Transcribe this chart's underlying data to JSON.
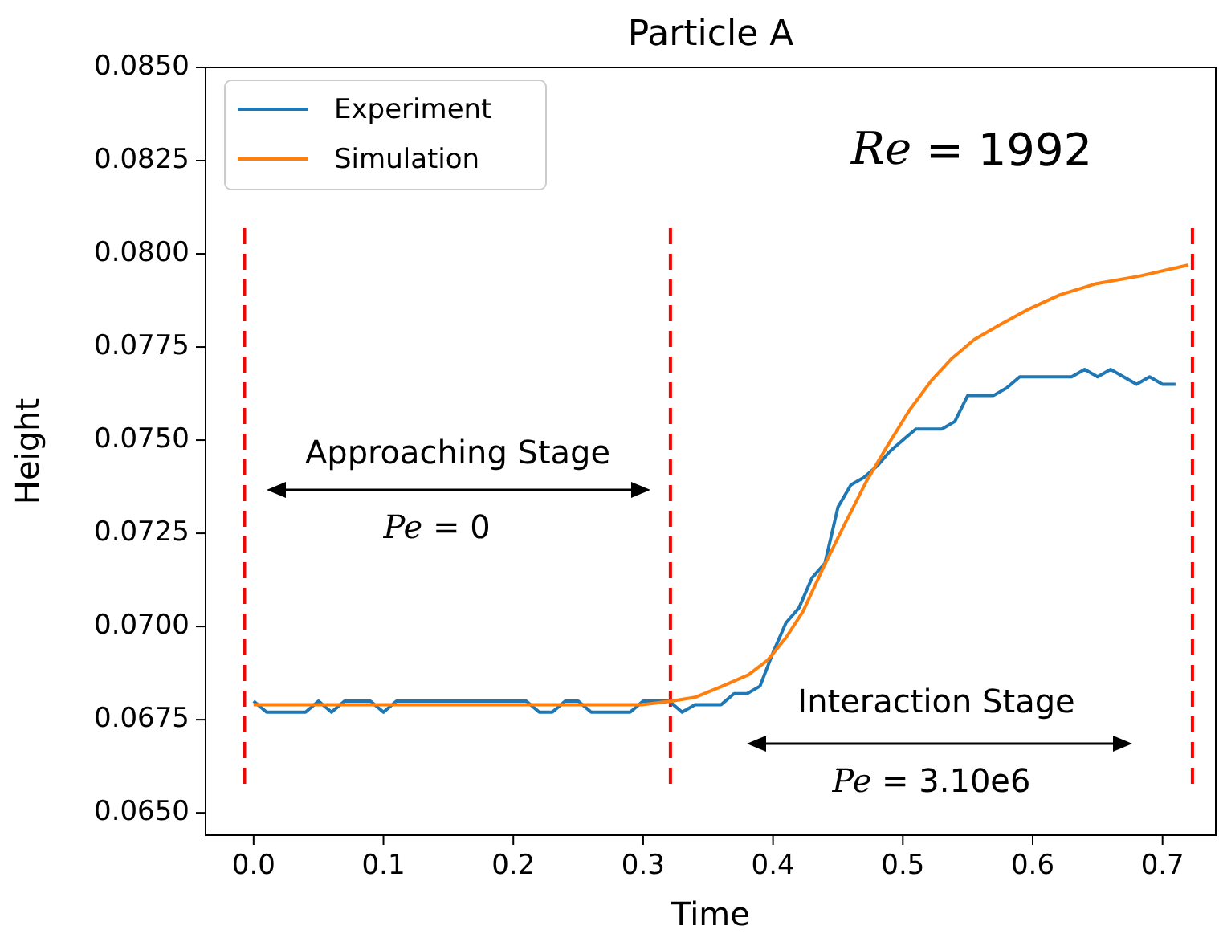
{
  "chart_data": {
    "type": "line",
    "title": "Particle A",
    "xlabel": "Time",
    "ylabel": "Height",
    "xlim": [
      -0.037,
      0.741
    ],
    "ylim": [
      0.0644,
      0.085
    ],
    "xticks": [
      {
        "value": 0,
        "label": "0.0"
      },
      {
        "value": 0.1,
        "label": "0.1"
      },
      {
        "value": 0.2,
        "label": "0.2"
      },
      {
        "value": 0.3,
        "label": "0.3"
      },
      {
        "value": 0.4,
        "label": "0.4"
      },
      {
        "value": 0.5,
        "label": "0.5"
      },
      {
        "value": 0.6,
        "label": "0.6"
      },
      {
        "value": 0.7,
        "label": "0.7"
      }
    ],
    "yticks": [
      {
        "value": 0.065,
        "label": "0.0650"
      },
      {
        "value": 0.0675,
        "label": "0.0675"
      },
      {
        "value": 0.07,
        "label": "0.0700"
      },
      {
        "value": 0.0725,
        "label": "0.0725"
      },
      {
        "value": 0.075,
        "label": "0.0750"
      },
      {
        "value": 0.0775,
        "label": "0.0775"
      },
      {
        "value": 0.08,
        "label": "0.0800"
      },
      {
        "value": 0.0825,
        "label": "0.0825"
      },
      {
        "value": 0.085,
        "label": "0.0850"
      }
    ],
    "grid": false,
    "legend": "top left",
    "marker": "none",
    "line_style": "solid",
    "series": [
      {
        "name": "Experiment",
        "color": "#1f77b4",
        "x": [
          0,
          0.01,
          0.02,
          0.03,
          0.04,
          0.05,
          0.06,
          0.07,
          0.08,
          0.09,
          0.1,
          0.11,
          0.12,
          0.13,
          0.14,
          0.15,
          0.16,
          0.17,
          0.18,
          0.19,
          0.2,
          0.21,
          0.22,
          0.23,
          0.24,
          0.25,
          0.26,
          0.27,
          0.28,
          0.29,
          0.3,
          0.31,
          0.32,
          0.33,
          0.34,
          0.35,
          0.36,
          0.37,
          0.38,
          0.39,
          0.4,
          0.41,
          0.42,
          0.43,
          0.44,
          0.45,
          0.46,
          0.47,
          0.48,
          0.49,
          0.5,
          0.51,
          0.52,
          0.53,
          0.54,
          0.55,
          0.56,
          0.57,
          0.58,
          0.59,
          0.6,
          0.61,
          0.62,
          0.63,
          0.64,
          0.65,
          0.66,
          0.67,
          0.68,
          0.69,
          0.7,
          0.71
        ],
        "values": [
          0.068,
          0.0677,
          0.0677,
          0.0677,
          0.0677,
          0.068,
          0.0677,
          0.068,
          0.068,
          0.068,
          0.0677,
          0.068,
          0.068,
          0.068,
          0.068,
          0.068,
          0.068,
          0.068,
          0.068,
          0.068,
          0.068,
          0.068,
          0.0677,
          0.0677,
          0.068,
          0.068,
          0.0677,
          0.0677,
          0.0677,
          0.0677,
          0.068,
          0.068,
          0.068,
          0.0677,
          0.0679,
          0.0679,
          0.0679,
          0.0682,
          0.0682,
          0.0684,
          0.0693,
          0.0701,
          0.0705,
          0.0713,
          0.0717,
          0.0732,
          0.0738,
          0.074,
          0.0743,
          0.0747,
          0.075,
          0.0753,
          0.0753,
          0.0753,
          0.0755,
          0.0762,
          0.0762,
          0.0762,
          0.0764,
          0.0767,
          0.0767,
          0.0767,
          0.0767,
          0.0767,
          0.0769,
          0.0767,
          0.0769,
          0.0767,
          0.0765,
          0.0767,
          0.0765,
          0.0765
        ]
      },
      {
        "name": "Simulation",
        "color": "#ff7f0e",
        "x": [
          0,
          0.1,
          0.2,
          0.299,
          0.322,
          0.34,
          0.361,
          0.381,
          0.396,
          0.41,
          0.423,
          0.439,
          0.456,
          0.472,
          0.489,
          0.505,
          0.522,
          0.538,
          0.555,
          0.575,
          0.596,
          0.621,
          0.649,
          0.682,
          0.72
        ],
        "values": [
          0.0679,
          0.0679,
          0.0679,
          0.0679,
          0.068,
          0.0681,
          0.0684,
          0.0687,
          0.0691,
          0.0697,
          0.0704,
          0.0716,
          0.0728,
          0.0739,
          0.0749,
          0.0758,
          0.0766,
          0.0772,
          0.0777,
          0.0781,
          0.0785,
          0.0789,
          0.0792,
          0.0794,
          0.0797
        ]
      }
    ],
    "ref_lines": [
      {
        "axis": "x",
        "value": -0.007,
        "color": "#ff0000",
        "line_style": "dashed"
      },
      {
        "axis": "x",
        "value": 0.321,
        "color": "#ff0000",
        "line_style": "dashed"
      },
      {
        "axis": "x",
        "value": 0.723,
        "color": "#ff0000",
        "line_style": "dashed"
      }
    ],
    "annotations": [
      "Re = 1992",
      "Approaching Stage",
      "Pe = 0",
      "Interaction Stage",
      "Pe = 3.10e6"
    ]
  }
}
